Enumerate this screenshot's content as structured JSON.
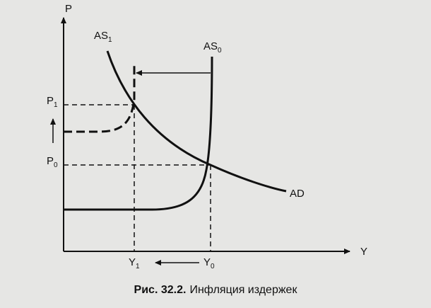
{
  "axes": {
    "y": "P",
    "x": "Y"
  },
  "curves": {
    "as1": {
      "main": "AS",
      "sub": "1"
    },
    "as0": {
      "main": "AS",
      "sub": "0"
    },
    "ad": "AD"
  },
  "levels": {
    "p1": {
      "main": "P",
      "sub": "1"
    },
    "p0": {
      "main": "P",
      "sub": "0"
    },
    "y1": {
      "main": "Y",
      "sub": "1"
    },
    "y0": {
      "main": "Y",
      "sub": "0"
    }
  },
  "caption": {
    "number": "Рис. 32.2.",
    "text": "Инфляция издержек"
  }
}
